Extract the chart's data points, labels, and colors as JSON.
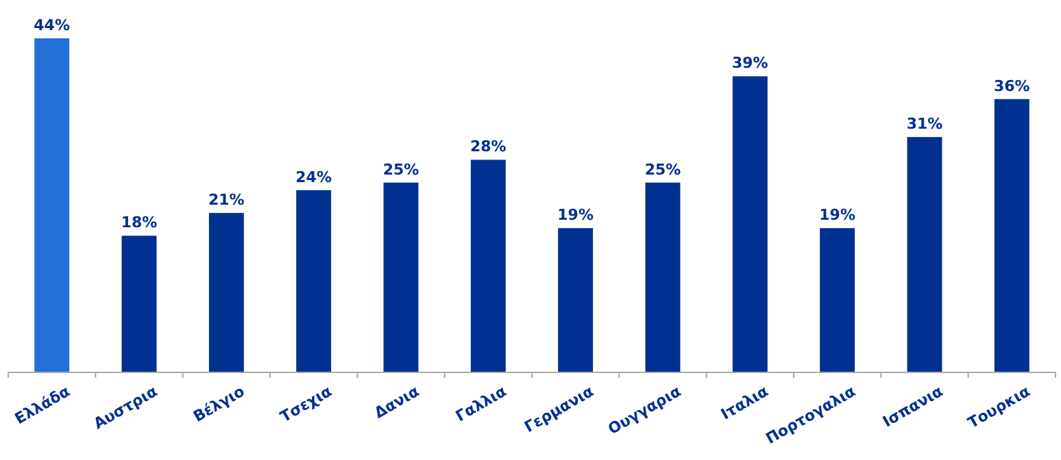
{
  "chart_data": {
    "type": "bar",
    "categories": [
      "Ελλάδα",
      "Αυστρια",
      "Βέλγιο",
      "Τσεχια",
      "Δανια",
      "Γαλλια",
      "Γερμανια",
      "Ουγγαρια",
      "Ιταλια",
      "Πορτογαλια",
      "Ισπανια",
      "Τουρκια"
    ],
    "values": [
      44,
      18,
      21,
      24,
      25,
      28,
      19,
      25,
      39,
      19,
      31,
      36
    ],
    "colors": [
      "#2270d8",
      "#003090",
      "#003090",
      "#003090",
      "#003090",
      "#003090",
      "#003090",
      "#003090",
      "#003090",
      "#003090",
      "#003090",
      "#003090"
    ],
    "value_labels": [
      "44%",
      "18%",
      "21%",
      "24%",
      "25%",
      "28%",
      "19%",
      "25%",
      "39%",
      "19%",
      "31%",
      "36%"
    ]
  }
}
